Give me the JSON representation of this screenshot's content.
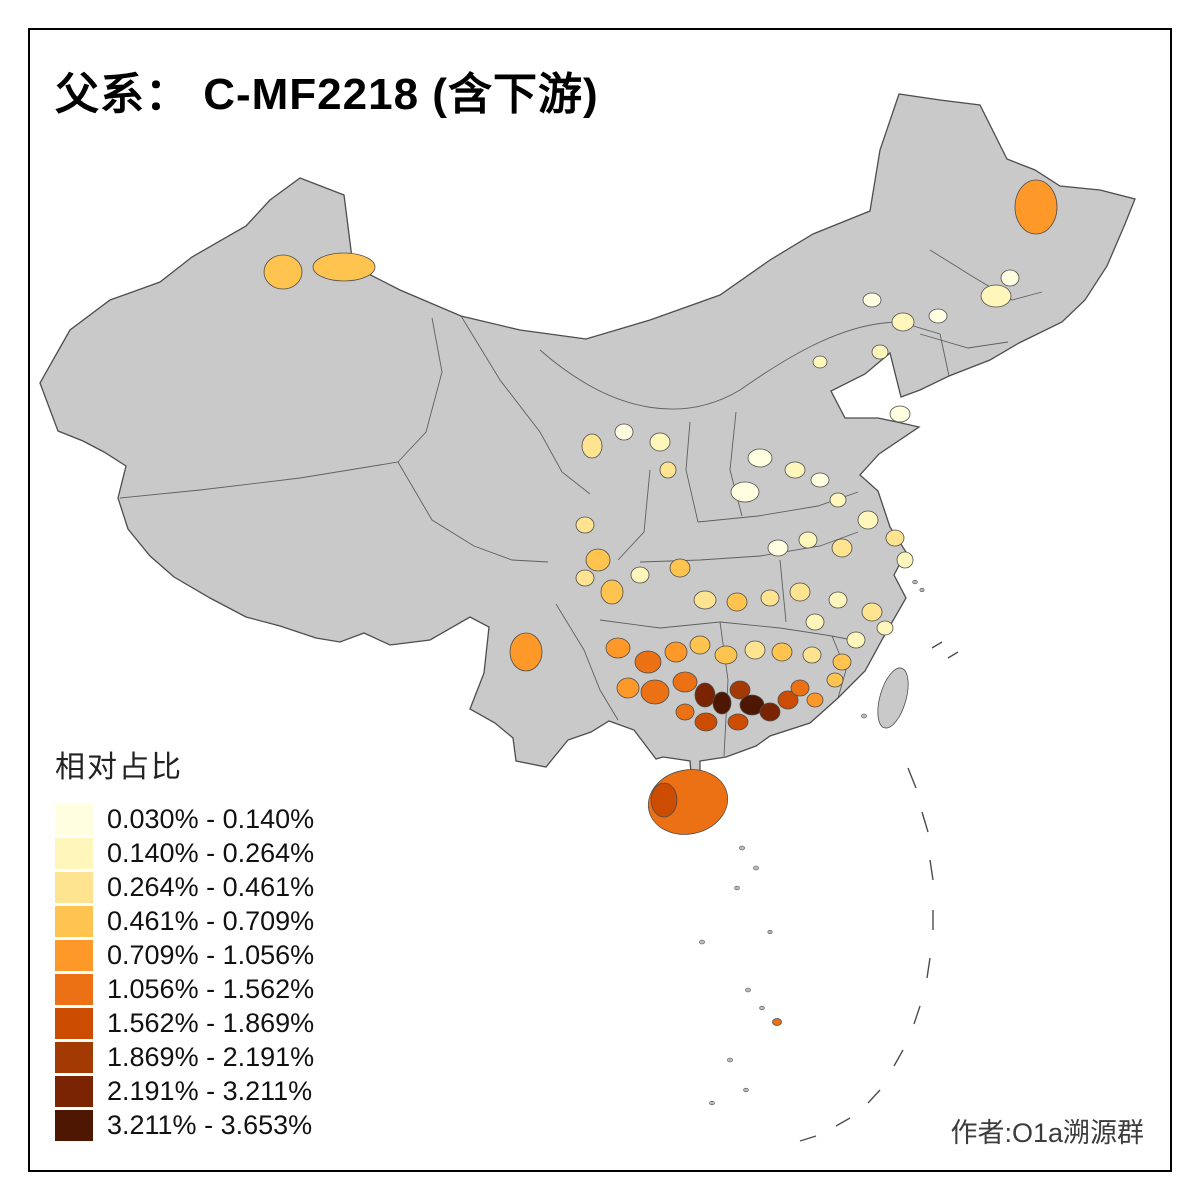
{
  "title": "父系： C-MF2218 (含下游)",
  "legend": {
    "title": "相对占比",
    "items": [
      {
        "label": "0.030% - 0.140%",
        "color": "#FFFEE0"
      },
      {
        "label": "0.140% - 0.264%",
        "color": "#FFF6BC"
      },
      {
        "label": "0.264% - 0.461%",
        "color": "#FEE391"
      },
      {
        "label": "0.461% - 0.709%",
        "color": "#FEC44F"
      },
      {
        "label": "0.709% - 1.056%",
        "color": "#FE9929"
      },
      {
        "label": "1.056% - 1.562%",
        "color": "#EC7014"
      },
      {
        "label": "1.562% - 1.869%",
        "color": "#CC4C02"
      },
      {
        "label": "1.869% - 2.191%",
        "color": "#A33A03"
      },
      {
        "label": "2.191% - 3.211%",
        "color": "#7A2404"
      },
      {
        "label": "3.211% - 3.653%",
        "color": "#4D1702"
      }
    ]
  },
  "attribution": "作者:O1a溯源群",
  "map": {
    "nodata_fill": "#C9C9C9",
    "border_color": "#4D4D4D",
    "island_fill": "#BBBBBB",
    "background": "#FFFFFF"
  }
}
